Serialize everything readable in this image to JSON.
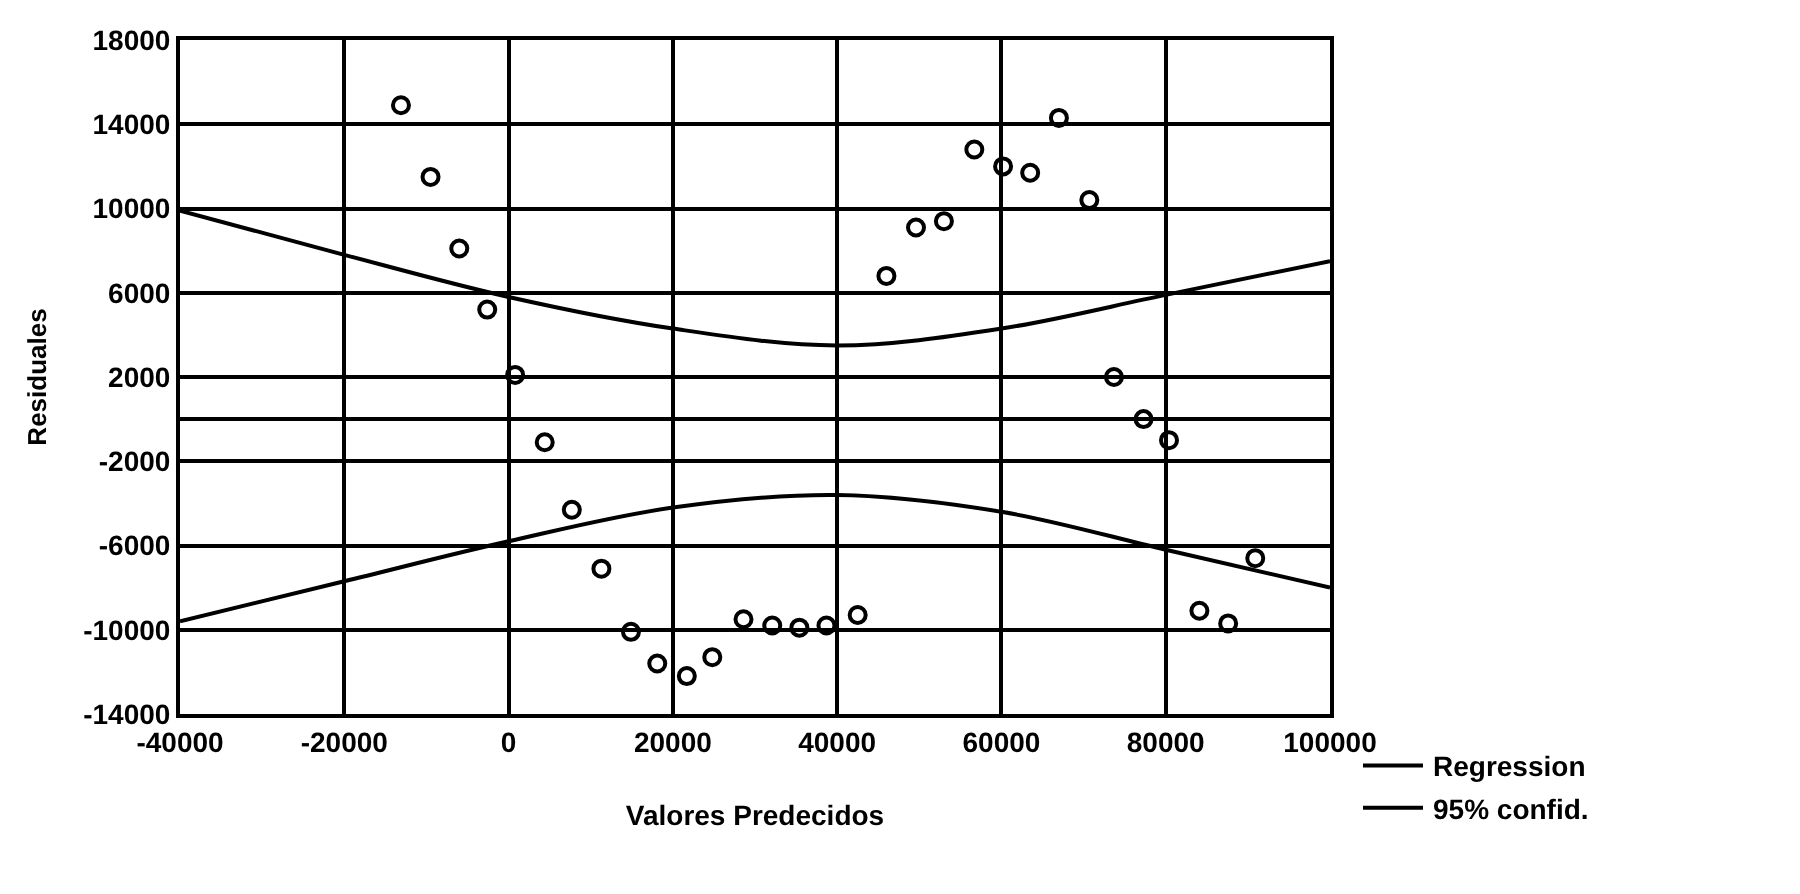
{
  "chart_data": {
    "type": "scatter",
    "xlabel": "Valores Predecidos",
    "ylabel": "Residuales",
    "xlim": [
      -40000,
      100000
    ],
    "ylim": [
      -14000,
      18000
    ],
    "xticks": [
      -40000,
      -20000,
      0,
      20000,
      40000,
      60000,
      80000,
      100000
    ],
    "yticks": [
      -14000,
      -10000,
      -6000,
      -2000,
      2000,
      6000,
      10000,
      14000,
      18000
    ],
    "grid": true,
    "legend": "bottom right",
    "series": [
      {
        "marker": "circle",
        "color": "#000000",
        "x": [
          -13100,
          -9500,
          -6000,
          -2600,
          800,
          4400,
          7700,
          11300,
          14900,
          18100,
          21700,
          24800,
          28600,
          32100,
          35400,
          38700,
          42500,
          46000,
          49600,
          53000,
          56700,
          60200,
          63500,
          67000,
          70700,
          73700,
          77300,
          80400,
          84100,
          87600,
          90900
        ],
        "values": [
          14900,
          11500,
          8100,
          5200,
          2100,
          -1100,
          -4300,
          -7100,
          -10100,
          -11600,
          -12200,
          -11300,
          -9500,
          -9800,
          -9900,
          -9800,
          -9300,
          6800,
          9100,
          9400,
          12800,
          12000,
          11700,
          14300,
          10400,
          2000,
          0,
          -1000,
          -9100,
          -9700,
          -6600
        ]
      },
      {
        "type": "line",
        "name": "Regression",
        "marker": "none",
        "line_style": "solid",
        "color": "#000000",
        "x": [
          -40000,
          100000
        ],
        "values": [
          0,
          0
        ]
      },
      {
        "type": "line",
        "name": "95% confid.",
        "marker": "none",
        "line_style": "solid",
        "color": "#000000",
        "x": [
          -40000,
          -20000,
          0,
          20000,
          40000,
          60000,
          80000,
          100000
        ],
        "values": [
          9900,
          7800,
          5800,
          4300,
          3500,
          4300,
          5900,
          7500
        ]
      },
      {
        "type": "line",
        "marker": "none",
        "line_style": "solid",
        "color": "#000000",
        "x": [
          -40000,
          -20000,
          0,
          20000,
          40000,
          60000,
          80000,
          100000
        ],
        "values": [
          -9600,
          -7700,
          -5800,
          -4200,
          -3600,
          -4400,
          -6200,
          -8000
        ]
      }
    ]
  }
}
